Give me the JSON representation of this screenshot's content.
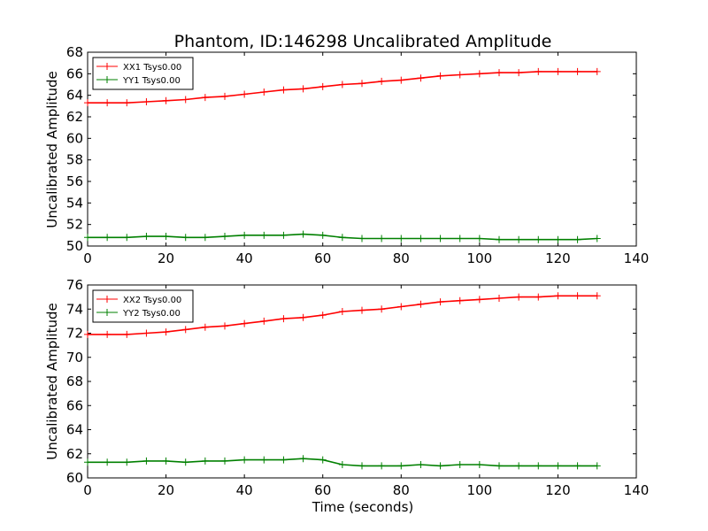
{
  "chart_data": {
    "type": "line",
    "title": "Phantom, ID:146298 Uncalibrated Amplitude",
    "xlabel": "Time (seconds)",
    "panels": [
      {
        "ylabel": "Uncalibrated Amplitude",
        "xlim": [
          0,
          140
        ],
        "ylim": [
          50,
          68
        ],
        "xticks": [
          "0",
          "20",
          "40",
          "60",
          "80",
          "100",
          "120",
          "140"
        ],
        "yticks": [
          "50",
          "52",
          "54",
          "56",
          "58",
          "60",
          "62",
          "64",
          "66",
          "68"
        ],
        "legend_position": "top-left",
        "series": [
          {
            "name": "XX1 Tsys0.00",
            "color": "#ff0000",
            "x": [
              0,
              5,
              10,
              15,
              20,
              25,
              30,
              35,
              40,
              45,
              50,
              55,
              60,
              65,
              70,
              75,
              80,
              85,
              90,
              95,
              100,
              105,
              110,
              115,
              120,
              125,
              130
            ],
            "y": [
              63.3,
              63.3,
              63.3,
              63.4,
              63.5,
              63.6,
              63.8,
              63.9,
              64.1,
              64.3,
              64.5,
              64.6,
              64.8,
              65.0,
              65.1,
              65.3,
              65.4,
              65.6,
              65.8,
              65.9,
              66.0,
              66.1,
              66.1,
              66.2,
              66.2,
              66.2,
              66.2
            ]
          },
          {
            "name": "YY1 Tsys0.00",
            "color": "#008000",
            "x": [
              0,
              5,
              10,
              15,
              20,
              25,
              30,
              35,
              40,
              45,
              50,
              55,
              60,
              65,
              70,
              75,
              80,
              85,
              90,
              95,
              100,
              105,
              110,
              115,
              120,
              125,
              130
            ],
            "y": [
              50.8,
              50.8,
              50.8,
              50.9,
              50.9,
              50.8,
              50.8,
              50.9,
              51.0,
              51.0,
              51.0,
              51.1,
              51.0,
              50.8,
              50.7,
              50.7,
              50.7,
              50.7,
              50.7,
              50.7,
              50.7,
              50.6,
              50.6,
              50.6,
              50.6,
              50.6,
              50.7
            ]
          }
        ]
      },
      {
        "ylabel": "Uncalibrated Amplitude",
        "xlim": [
          0,
          140
        ],
        "ylim": [
          60,
          76
        ],
        "xticks": [
          "0",
          "20",
          "40",
          "60",
          "80",
          "100",
          "120",
          "140"
        ],
        "yticks": [
          "60",
          "62",
          "64",
          "66",
          "68",
          "70",
          "72",
          "74",
          "76"
        ],
        "legend_position": "top-left",
        "series": [
          {
            "name": "XX2 Tsys0.00",
            "color": "#ff0000",
            "x": [
              0,
              5,
              10,
              15,
              20,
              25,
              30,
              35,
              40,
              45,
              50,
              55,
              60,
              65,
              70,
              75,
              80,
              85,
              90,
              95,
              100,
              105,
              110,
              115,
              120,
              125,
              130
            ],
            "y": [
              71.9,
              71.9,
              71.9,
              72.0,
              72.1,
              72.3,
              72.5,
              72.6,
              72.8,
              73.0,
              73.2,
              73.3,
              73.5,
              73.8,
              73.9,
              74.0,
              74.2,
              74.4,
              74.6,
              74.7,
              74.8,
              74.9,
              75.0,
              75.0,
              75.1,
              75.1,
              75.1
            ]
          },
          {
            "name": "YY2 Tsys0.00",
            "color": "#008000",
            "x": [
              0,
              5,
              10,
              15,
              20,
              25,
              30,
              35,
              40,
              45,
              50,
              55,
              60,
              65,
              70,
              75,
              80,
              85,
              90,
              95,
              100,
              105,
              110,
              115,
              120,
              125,
              130
            ],
            "y": [
              61.3,
              61.3,
              61.3,
              61.4,
              61.4,
              61.3,
              61.4,
              61.4,
              61.5,
              61.5,
              61.5,
              61.6,
              61.5,
              61.1,
              61.0,
              61.0,
              61.0,
              61.1,
              61.0,
              61.1,
              61.1,
              61.0,
              61.0,
              61.0,
              61.0,
              61.0,
              61.0
            ]
          }
        ]
      }
    ]
  }
}
